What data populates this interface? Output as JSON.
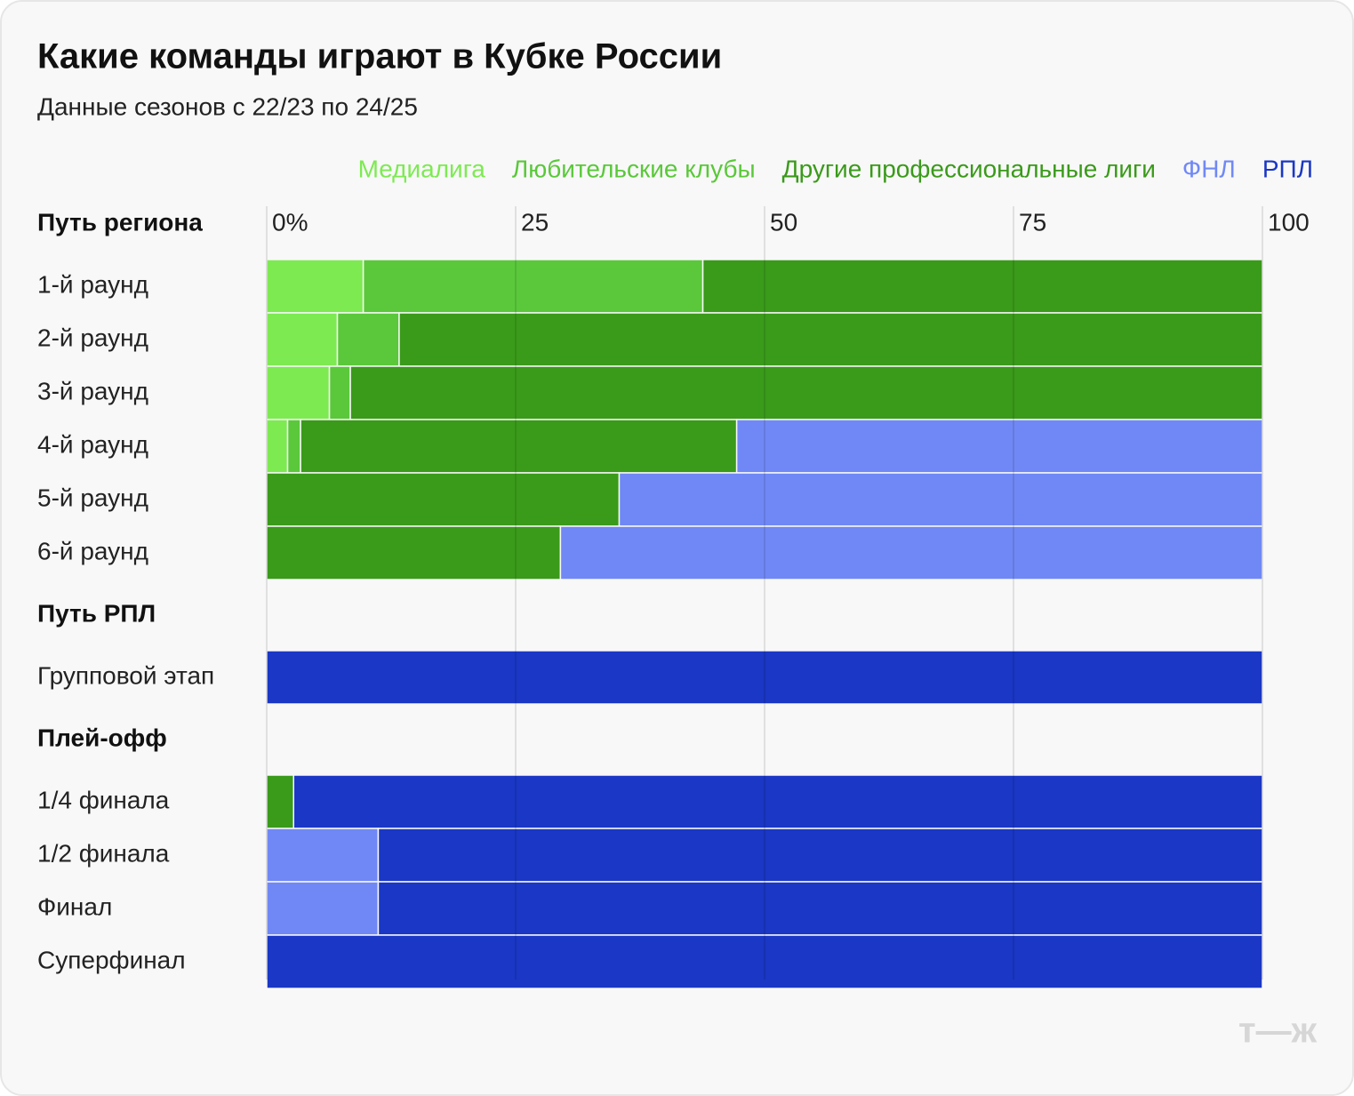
{
  "chart_data": {
    "type": "stacked_barh",
    "title": "Какие команды играют в Кубке России",
    "subtitle": "Данные сезонов с 22/23 по 24/25",
    "groups": [
      {
        "label": "Путь региона",
        "categories": [
          "1-й раунд",
          "2-й раунд",
          "3-й раунд",
          "4-й раунд",
          "5-й раунд",
          "6-й раунд"
        ]
      },
      {
        "label": "Путь РПЛ",
        "categories": [
          "Групповой этап"
        ]
      },
      {
        "label": "Плей-офф",
        "categories": [
          "1/4 финала",
          "1/2 финала",
          "Финал",
          "Суперфинал"
        ]
      }
    ],
    "series": [
      {
        "name": "Медиалига",
        "color": "#7dea52",
        "values": [
          9.7,
          7.1,
          6.3,
          2.1,
          null,
          null,
          null,
          null,
          null,
          null,
          null
        ]
      },
      {
        "name": "Любительские клубы",
        "color": "#5ac83a",
        "values": [
          34.1,
          6.2,
          2.1,
          1.3,
          null,
          null,
          null,
          null,
          null,
          null,
          null
        ]
      },
      {
        "name": "Другие профессиональные лиги",
        "color": "#3a9a1a",
        "values": [
          56.2,
          86.7,
          91.6,
          43.8,
          35.4,
          29.5,
          null,
          2.7,
          null,
          null,
          null
        ]
      },
      {
        "name": "ФНЛ",
        "color": "#7088f5",
        "values": [
          null,
          null,
          null,
          52.8,
          64.6,
          70.5,
          null,
          null,
          11.2,
          11.2,
          null
        ]
      },
      {
        "name": "РПЛ",
        "color": "#1a37c5",
        "values": [
          null,
          null,
          null,
          null,
          null,
          null,
          100,
          97.3,
          88.8,
          88.8,
          100
        ]
      }
    ],
    "xlim": [
      0,
      100
    ],
    "xticks": [
      {
        "value": 0,
        "label": "0%"
      },
      25,
      50,
      75,
      100
    ],
    "grid": true,
    "logo": "т—ж"
  }
}
